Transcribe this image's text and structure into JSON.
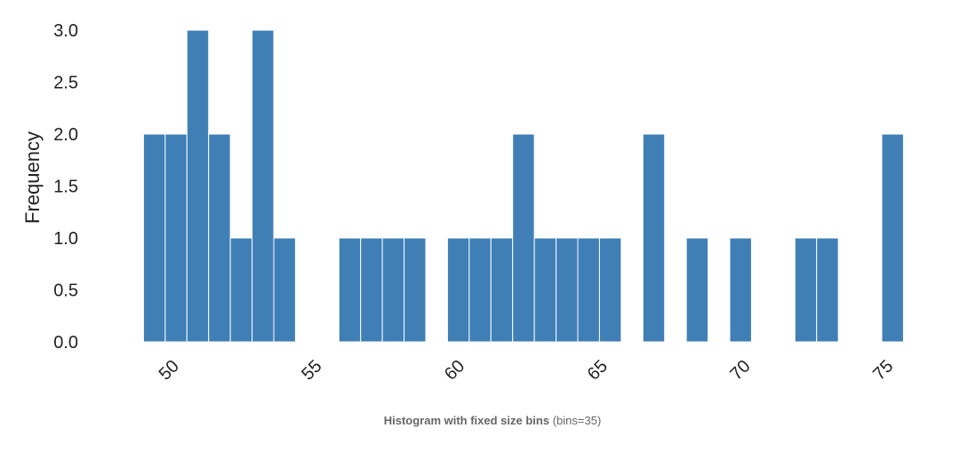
{
  "chart_data": {
    "type": "bar",
    "xlabel": "",
    "ylabel": "Frequency",
    "caption_bold": "Histogram with fixed size bins",
    "caption_note": "(bins=35)",
    "bar_color": "#3f7fb5",
    "bin_start": 49.3,
    "bin_width": 0.76,
    "values": [
      2,
      2,
      3,
      2,
      1,
      3,
      1,
      0,
      0,
      1,
      1,
      1,
      1,
      0,
      1,
      1,
      1,
      2,
      1,
      1,
      1,
      1,
      0,
      2,
      0,
      1,
      0,
      1,
      0,
      0,
      1,
      1,
      0,
      0,
      2
    ],
    "xlim": [
      47.7,
      77.1
    ],
    "ylim": [
      0,
      3.0
    ],
    "x_ticks": [
      "50",
      "55",
      "60",
      "65",
      "70",
      "75"
    ],
    "x_tick_values": [
      50,
      55,
      60,
      65,
      70,
      75
    ],
    "y_ticks": [
      "0.0",
      "0.5",
      "1.0",
      "1.5",
      "2.0",
      "2.5",
      "3.0"
    ],
    "y_tick_values": [
      0,
      0.5,
      1.0,
      1.5,
      2.0,
      2.5,
      3.0
    ],
    "grid": false
  }
}
